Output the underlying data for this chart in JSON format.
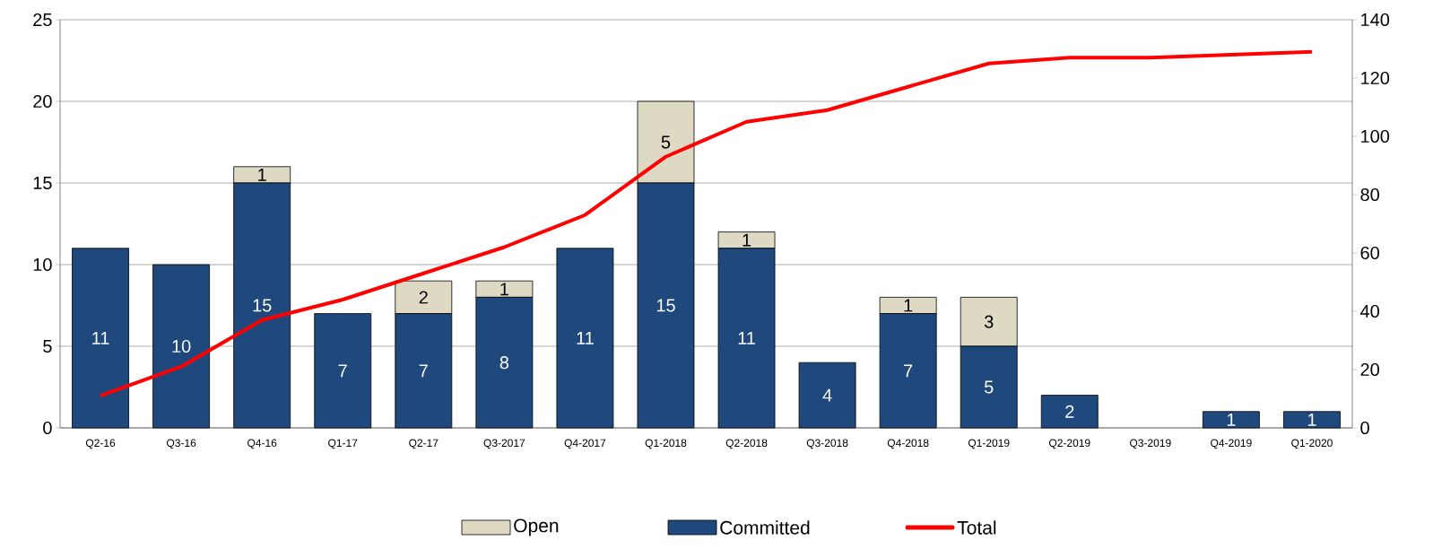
{
  "chart_data": {
    "type": "bar",
    "stacked": true,
    "categories": [
      "Q2-16",
      "Q3-16",
      "Q4-16",
      "Q1-17",
      "Q2-17",
      "Q3-2017",
      "Q4-2017",
      "Q1-2018",
      "Q2-2018",
      "Q3-2018",
      "Q4-2018",
      "Q1-2019",
      "Q2-2019",
      "Q3-2019",
      "Q4-2019",
      "Q1-2020"
    ],
    "series": [
      {
        "name": "Committed",
        "color": "#1f497d",
        "values": [
          11,
          10,
          15,
          7,
          7,
          8,
          11,
          15,
          11,
          4,
          7,
          5,
          2,
          null,
          1,
          1
        ],
        "value_labels": [
          "11",
          "10",
          "15",
          "7",
          "7",
          "8",
          "11",
          "15",
          "11",
          "4",
          "7",
          "5",
          "2",
          null,
          "1",
          "1"
        ]
      },
      {
        "name": "Open",
        "color": "#ddd9c3",
        "values": [
          null,
          null,
          1,
          null,
          2,
          1,
          null,
          5,
          1,
          null,
          1,
          3,
          null,
          null,
          null,
          null
        ],
        "value_labels": [
          null,
          null,
          "1",
          null,
          "2",
          "1",
          null,
          "5",
          "1",
          null,
          "1",
          "3",
          null,
          null,
          null,
          null
        ]
      },
      {
        "name": "Total",
        "type": "line",
        "axis": "y2",
        "color": "#ff0000",
        "values": [
          11,
          21,
          37,
          44,
          53,
          62,
          73,
          93,
          105,
          109,
          117,
          125,
          127,
          127,
          128,
          129
        ]
      }
    ],
    "ylim": [
      0,
      25
    ],
    "yticks": [
      0,
      5,
      10,
      15,
      20,
      25
    ],
    "y2lim": [
      0,
      140
    ],
    "y2ticks": [
      0,
      20,
      40,
      60,
      80,
      100,
      120,
      140
    ],
    "grid": "y",
    "legend": "bottom",
    "marker": "none",
    "line_style": "solid"
  }
}
